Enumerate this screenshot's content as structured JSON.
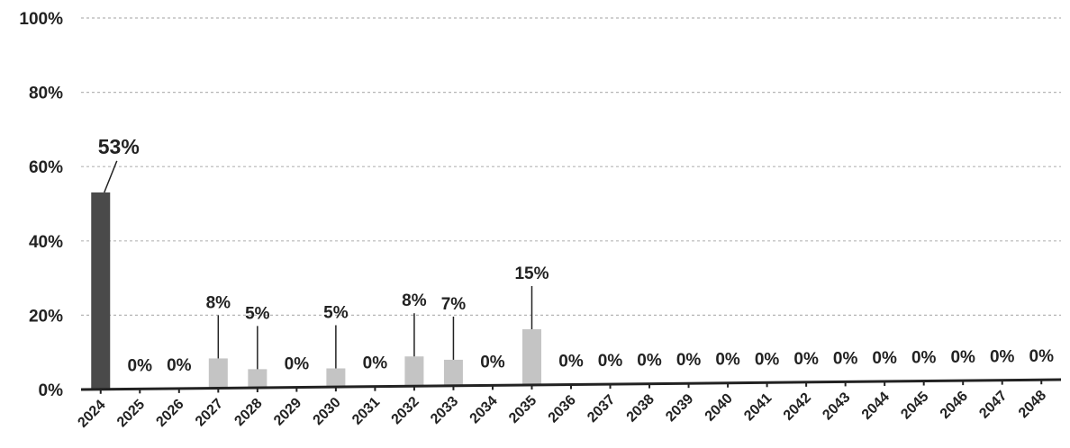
{
  "chart_data": {
    "type": "bar",
    "categories": [
      "2024",
      "2025",
      "2026",
      "2027",
      "2028",
      "2029",
      "2030",
      "2031",
      "2032",
      "2033",
      "2034",
      "2035",
      "2036",
      "2037",
      "2038",
      "2039",
      "2040",
      "2041",
      "2042",
      "2043",
      "2044",
      "2045",
      "2046",
      "2047",
      "2048"
    ],
    "values": [
      53,
      0,
      0,
      8,
      5,
      0,
      5,
      0,
      8,
      7,
      0,
      15,
      0,
      0,
      0,
      0,
      0,
      0,
      0,
      0,
      0,
      0,
      0,
      0,
      0
    ],
    "data_labels": [
      "53%",
      "0%",
      "0%",
      "8%",
      "5%",
      "0%",
      "5%",
      "0%",
      "8%",
      "7%",
      "0%",
      "15%",
      "0%",
      "0%",
      "0%",
      "0%",
      "0%",
      "0%",
      "0%",
      "0%",
      "0%",
      "0%",
      "0%",
      "0%",
      "0%"
    ],
    "yticks": [
      "0%",
      "20%",
      "40%",
      "60%",
      "80%",
      "100%"
    ],
    "ylim": [
      0,
      100
    ],
    "title": "",
    "xlabel": "",
    "ylabel": "",
    "grid": true,
    "legend": "none",
    "colors": {
      "highlight": "#4a4a4a",
      "bar": "#c4c4c4",
      "axis": "#222222",
      "grid": "#b5b5b5"
    }
  }
}
